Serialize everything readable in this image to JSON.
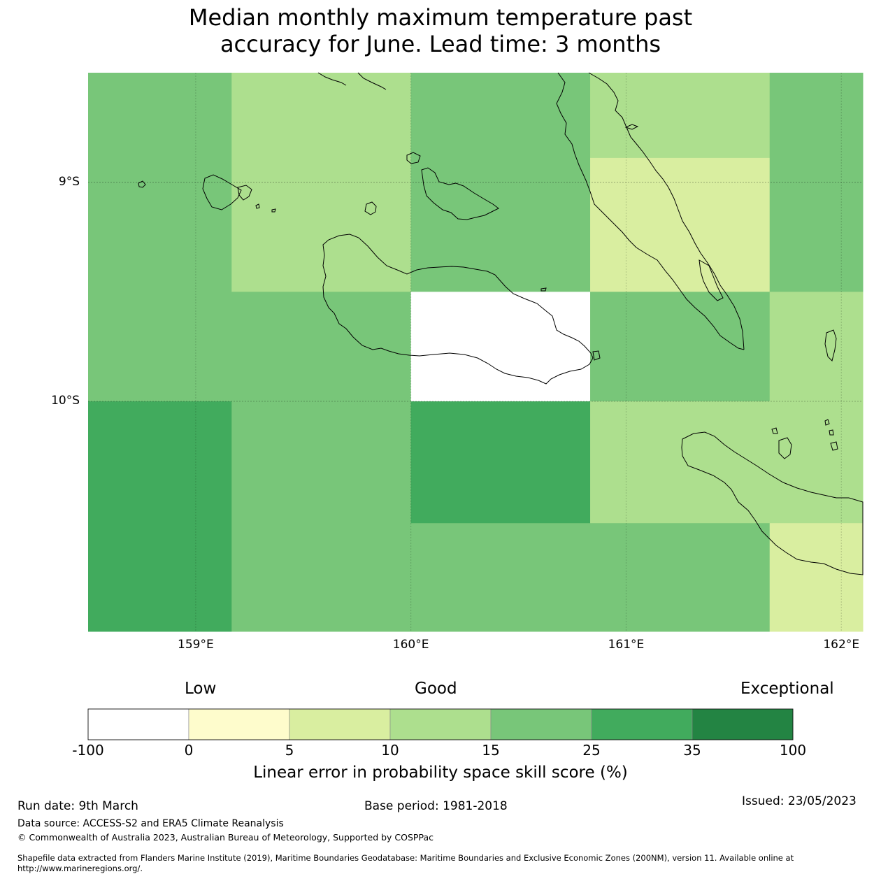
{
  "title": {
    "line1": "Median monthly maximum temperature past",
    "line2": "accuracy for June. Lead time: 3 months"
  },
  "map": {
    "lon_range": [
      158.5,
      162.1
    ],
    "lat_range": [
      -11.05,
      -8.5
    ],
    "lat_ticks": [
      {
        "value": -9,
        "label": "9°S"
      },
      {
        "value": -10,
        "label": "10°S"
      }
    ],
    "lon_ticks": [
      {
        "value": 159,
        "label": "159°E"
      },
      {
        "value": 160,
        "label": "160°E"
      },
      {
        "value": 161,
        "label": "161°E"
      },
      {
        "value": 162,
        "label": "162°E"
      }
    ],
    "grid_cells": [
      {
        "lon": [
          158.5,
          159.167
        ],
        "lat": [
          -9.5,
          -8.5
        ],
        "category": "15-25"
      },
      {
        "lon": [
          159.167,
          160.0
        ],
        "lat": [
          -9.5,
          -8.5
        ],
        "category": "10-15"
      },
      {
        "lon": [
          160.0,
          160.833
        ],
        "lat": [
          -9.5,
          -8.5
        ],
        "category": "15-25"
      },
      {
        "lon": [
          160.833,
          161.667
        ],
        "lat": [
          -8.889,
          -8.5
        ],
        "category": "10-15"
      },
      {
        "lon": [
          160.833,
          161.667
        ],
        "lat": [
          -9.5,
          -8.889
        ],
        "category": "5-10"
      },
      {
        "lon": [
          161.667,
          162.1
        ],
        "lat": [
          -9.5,
          -8.5
        ],
        "category": "15-25"
      },
      {
        "lon": [
          158.5,
          160.0
        ],
        "lat": [
          -10.0,
          -9.5
        ],
        "category": "15-25"
      },
      {
        "lon": [
          160.0,
          160.833
        ],
        "lat": [
          -10.0,
          -9.5
        ],
        "category": "-100-0"
      },
      {
        "lon": [
          160.833,
          161.667
        ],
        "lat": [
          -10.0,
          -9.5
        ],
        "category": "15-25"
      },
      {
        "lon": [
          161.667,
          162.1
        ],
        "lat": [
          -10.0,
          -9.5
        ],
        "category": "10-15"
      },
      {
        "lon": [
          158.5,
          159.167
        ],
        "lat": [
          -11.05,
          -10.0
        ],
        "category": "25-35"
      },
      {
        "lon": [
          159.167,
          160.0
        ],
        "lat": [
          -11.05,
          -10.0
        ],
        "category": "15-25"
      },
      {
        "lon": [
          160.0,
          160.833
        ],
        "lat": [
          -10.556,
          -10.0
        ],
        "category": "25-35"
      },
      {
        "lon": [
          160.833,
          162.1
        ],
        "lat": [
          -10.556,
          -10.0
        ],
        "category": "10-15"
      },
      {
        "lon": [
          160.0,
          161.667
        ],
        "lat": [
          -11.05,
          -10.556
        ],
        "category": "15-25"
      },
      {
        "lon": [
          161.667,
          162.1
        ],
        "lat": [
          -11.05,
          -10.556
        ],
        "category": "5-10"
      }
    ]
  },
  "colorbar": {
    "labels": {
      "low": "Low",
      "good": "Good",
      "exceptional": "Exceptional"
    },
    "categories": [
      {
        "range": "-100-0",
        "color": "#ffffff"
      },
      {
        "range": "0-5",
        "color": "#fefccc"
      },
      {
        "range": "5-10",
        "color": "#d9eea0"
      },
      {
        "range": "10-15",
        "color": "#addf8e"
      },
      {
        "range": "15-25",
        "color": "#78c679"
      },
      {
        "range": "25-35",
        "color": "#41ab5d"
      },
      {
        "range": "35-100",
        "color": "#238443"
      }
    ],
    "ticks": [
      "-100",
      "0",
      "5",
      "10",
      "15",
      "25",
      "35",
      "100"
    ],
    "title": "Linear error in probability space skill score (%)"
  },
  "footer": {
    "run_date": "Run date: 9th March",
    "base_period": "Base period: 1981-2018",
    "issued": "Issued: 23/05/2023",
    "data_source": "Data source: ACCESS-S2 and ERA5 Climate Reanalysis",
    "copyright": "© Commonwealth of Australia 2023, Australian Bureau of Meteorology, Supported by COSPPac",
    "shapefile_line1": "Shapefile data extracted from Flanders Marine Institute (2019), Maritime Boundaries Geodatabase: Maritime Boundaries and Exclusive Economic Zones (200NM), version 11. Available online at",
    "shapefile_line2": "http://www.marineregions.org/."
  }
}
